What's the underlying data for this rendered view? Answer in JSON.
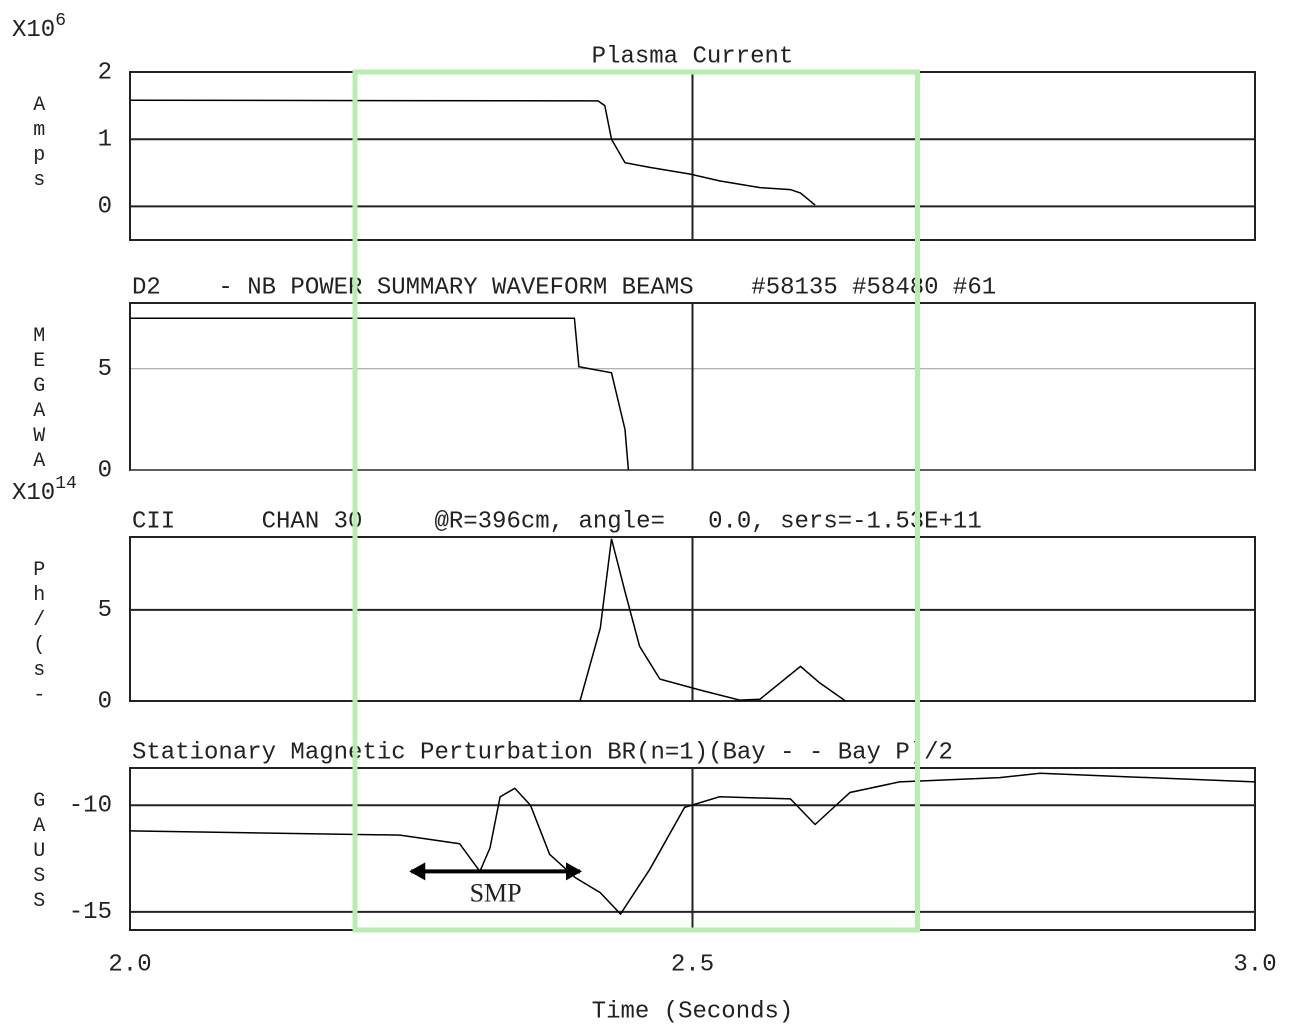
{
  "chart_data": [
    {
      "type": "line",
      "title": "Plasma Current",
      "ylabel": "Amps",
      "scale_label": {
        "base": "X10",
        "power": "6"
      },
      "xlim": [
        2.0,
        3.0
      ],
      "ylim": [
        -0.5,
        2
      ],
      "yticks": [
        0,
        1,
        2
      ],
      "x": [
        2.0,
        2.416,
        2.422,
        2.428,
        2.44,
        2.462,
        2.498,
        2.524,
        2.56,
        2.587,
        2.596,
        2.609
      ],
      "series": [
        {
          "color": "#000000",
          "values": [
            1.58,
            1.57,
            1.5,
            1.0,
            0.65,
            0.58,
            0.48,
            0.38,
            0.28,
            0.25,
            0.2,
            0.02
          ]
        }
      ]
    },
    {
      "type": "line",
      "title": "D2    - NB POWER SUMMARY WAVEFORM BEAMS    #58135 #58480 #61",
      "ylabel": "MEGAWA",
      "xlim": [
        2.0,
        3.0
      ],
      "ylim": [
        0,
        8.25
      ],
      "yticks": [
        0,
        5
      ],
      "x": [
        2.0,
        2.395,
        2.399,
        2.428,
        2.44,
        2.443
      ],
      "series": [
        {
          "color": "#000000",
          "values": [
            7.5,
            7.5,
            5.1,
            4.8,
            2.0,
            0
          ]
        }
      ]
    },
    {
      "type": "line",
      "title": "CII      CHAN 30     @R=396cm, angle=   0.0, sers=-1.53E+11",
      "ylabel": "Ph/(s-",
      "scale_label": {
        "base": "X10",
        "power": "14"
      },
      "xlim": [
        2.0,
        3.0
      ],
      "ylim": [
        0,
        9
      ],
      "yticks": [
        0,
        5
      ],
      "x": [
        2.4,
        2.418,
        2.428,
        2.44,
        2.453,
        2.471,
        2.507,
        2.542,
        2.56,
        2.596,
        2.613,
        2.636
      ],
      "series": [
        {
          "color": "#000000",
          "values": [
            0,
            4,
            8.9,
            6,
            3,
            1.2,
            0.6,
            0.05,
            0.1,
            1.9,
            1.0,
            0
          ]
        }
      ]
    },
    {
      "type": "line",
      "title": "Stationary Magnetic Perturbation BR(n=1)(Bay - - Bay P)/2",
      "ylabel": "GAUSS",
      "xlim": [
        2.0,
        3.0
      ],
      "ylim": [
        -15.85,
        -8.25
      ],
      "yticks": [
        -15,
        -10
      ],
      "xticks": [
        {
          "value": 2,
          "label": "2.0"
        },
        2.5,
        {
          "value": 3,
          "label": "3.0"
        }
      ],
      "xlabel": "Time (Seconds)",
      "x": [
        2.0,
        2.24,
        2.293,
        2.311,
        2.32,
        2.329,
        2.342,
        2.356,
        2.373,
        2.396,
        2.418,
        2.436,
        2.462,
        2.493,
        2.524,
        2.587,
        2.609,
        2.64,
        2.684,
        2.773,
        2.809,
        3.0
      ],
      "series": [
        {
          "color": "#000000",
          "values": [
            -11.2,
            -11.4,
            -11.8,
            -13.1,
            -12,
            -9.6,
            -9.2,
            -10,
            -12.3,
            -13.4,
            -14.1,
            -15.1,
            -13,
            -10.1,
            -9.6,
            -9.7,
            -10.9,
            -9.4,
            -8.9,
            -8.7,
            -8.5,
            -8.9
          ]
        }
      ],
      "annotations": [
        {
          "text": "SMP",
          "x": [
            2.25,
            2.4
          ],
          "y": -13.1
        }
      ]
    }
  ],
  "highlight": {
    "x": [
      2.2,
      2.7
    ],
    "color": "#b8ecb0"
  }
}
